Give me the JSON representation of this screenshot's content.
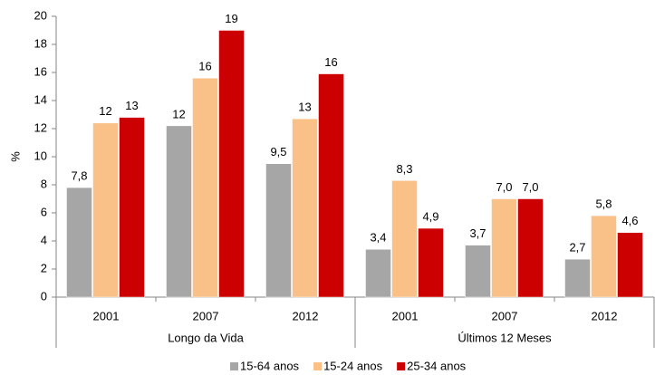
{
  "chart_data": {
    "type": "bar",
    "y_label": "%",
    "groups": [
      {
        "name": "Longo da Vida",
        "categories": [
          "2001",
          "2007",
          "2012"
        ]
      },
      {
        "name": "Últimos 12 Meses",
        "categories": [
          "2001",
          "2007",
          "2012"
        ]
      }
    ],
    "series": [
      {
        "name": "15-64 anos",
        "color": "#a6a6a6",
        "values": [
          7.8,
          12.2,
          9.5,
          3.4,
          3.7,
          2.7
        ],
        "value_labels": [
          "7,8",
          "12",
          "9,5",
          "3,4",
          "3,7",
          "2,7"
        ]
      },
      {
        "name": "15-24 anos",
        "color": "#f9c088",
        "values": [
          12.4,
          15.6,
          12.7,
          8.3,
          7.0,
          5.8
        ],
        "value_labels": [
          "12",
          "16",
          "13",
          "8,3",
          "7,0",
          "5,8"
        ]
      },
      {
        "name": "25-34 anos",
        "color": "#cc0000",
        "values": [
          12.8,
          19.0,
          15.9,
          4.9,
          7.0,
          4.6
        ],
        "value_labels": [
          "13",
          "19",
          "16",
          "4,9",
          "7,0",
          "4,6"
        ]
      }
    ],
    "ylim": [
      0,
      20
    ],
    "yticks": [
      0,
      2,
      4,
      6,
      8,
      10,
      12,
      14,
      16,
      18,
      20
    ],
    "grid": false,
    "legend": "bottom"
  }
}
